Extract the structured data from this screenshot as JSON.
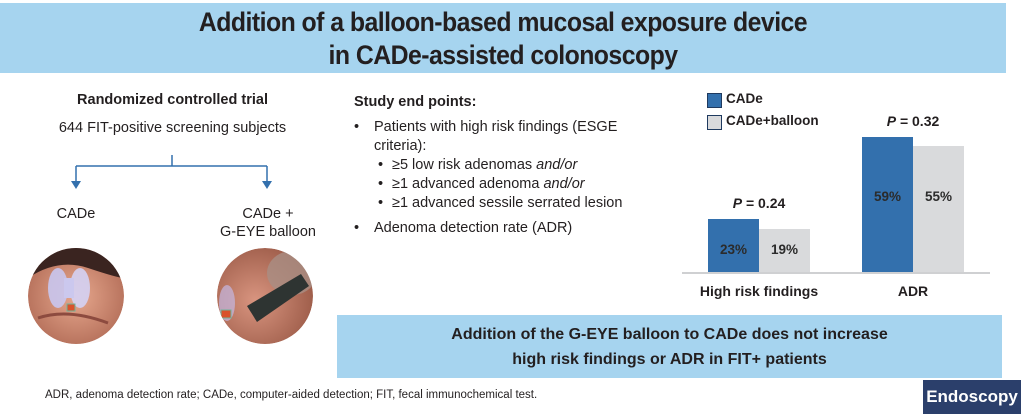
{
  "header": {
    "title_line1": "Addition of a balloon-based mucosal exposure device",
    "title_line2": "in CADe-assisted colonoscopy"
  },
  "trial": {
    "title": "Randomized controlled trial",
    "subjects": "644 FIT-positive screening subjects",
    "arms": [
      {
        "label": "CADe",
        "image": "cade-endoscopic-view"
      },
      {
        "label_line1": "CADe +",
        "label_line2": "G-EYE balloon",
        "image": "g-eye-balloon-endoscopic-view"
      }
    ]
  },
  "endpoints": {
    "title": "Study end points:",
    "bullet1": "Patients with high risk findings (ESGE criteria):",
    "sub_items": [
      {
        "text": "≥5 low risk adenomas ",
        "italic": "and/or"
      },
      {
        "text": "≥1 advanced adenoma ",
        "italic": "and/or"
      },
      {
        "text": "≥1 advanced sessile serrated lesion",
        "italic": ""
      }
    ],
    "bullet2": "Adenoma detection rate (ADR)",
    "bullet_glyph": "•"
  },
  "chart_data": {
    "type": "bar",
    "title": "",
    "categories": [
      "High risk findings",
      "ADR"
    ],
    "series": [
      {
        "name": "CADe",
        "values": [
          23,
          59
        ],
        "labels": [
          "23%",
          "59%"
        ],
        "color": "#3370ad"
      },
      {
        "name": "CADe+balloon",
        "values": [
          19,
          55
        ],
        "labels": [
          "19%",
          "55%"
        ],
        "color": "#d9dadc"
      }
    ],
    "p_values": [
      "= 0.24",
      "= 0.32"
    ],
    "p_symbol": "P",
    "ylim": [
      0,
      65
    ],
    "xlabel": "",
    "ylabel": "",
    "grid": false,
    "legend": "top-left"
  },
  "conclusion": {
    "line1": "Addition of the G-EYE balloon to CADe does not increase",
    "line2": "high risk findings or ADR in FIT+ patients"
  },
  "footnote": "ADR, adenoma detection rate; CADe, computer-aided detection; FIT, fecal immunochemical test.",
  "brand": "Endoscopy",
  "colors": {
    "band": "#a6d4ef",
    "accent_blue": "#3370ad",
    "grey_bar": "#d9dadc",
    "brand_bg": "#2b3f6b"
  }
}
